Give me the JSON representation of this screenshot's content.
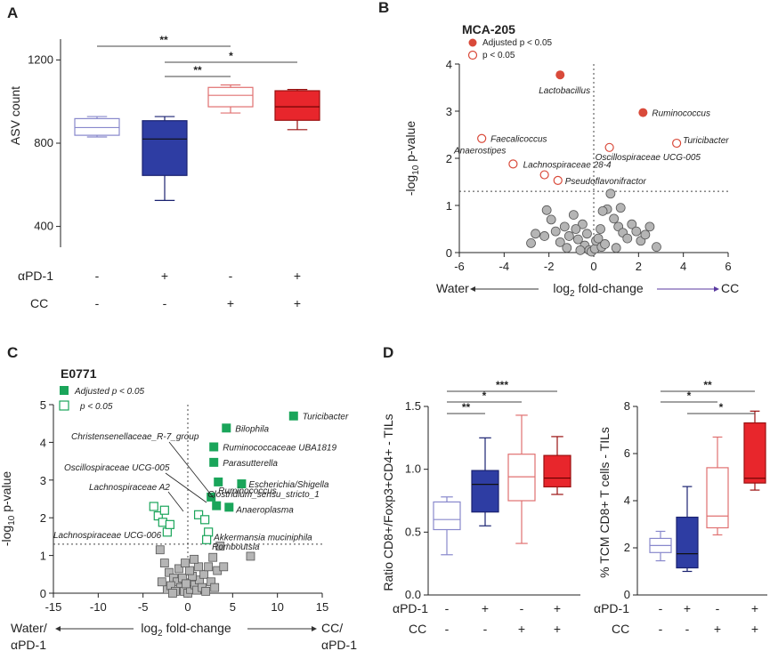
{
  "panel_letters": {
    "a": "A",
    "b": "B",
    "c": "C",
    "d": "D"
  },
  "colors": {
    "water": "#8888cc",
    "apd1": "#2e3da3",
    "cc": "#e07070",
    "cc_apd1": "#e8262c",
    "adj_red": "#d94a3a",
    "green": "#1aa55a",
    "gray": "#b5b5b5"
  },
  "conditions": {
    "apd1_label": "αPD-1",
    "cc_label": "CC",
    "apd1_signs": [
      "-",
      "+",
      "-",
      "+"
    ],
    "cc_signs": [
      "-",
      "-",
      "+",
      "+"
    ]
  },
  "chart_data": [
    {
      "id": "A",
      "type": "box",
      "ylabel": "ASV count",
      "ylim": [
        300,
        1300
      ],
      "yticks": [
        "400",
        "800",
        "1200"
      ],
      "ytick_values": [
        400,
        800,
        1200
      ],
      "groups": [
        {
          "name": "Water",
          "min": 830,
          "q1": 838,
          "median": 875,
          "q3": 918,
          "max": 928
        },
        {
          "name": "αPD-1",
          "min": 525,
          "q1": 645,
          "median": 820,
          "q3": 908,
          "max": 928
        },
        {
          "name": "CC",
          "min": 945,
          "q1": 975,
          "median": 1030,
          "q3": 1068,
          "max": 1080
        },
        {
          "name": "CC+αPD-1",
          "min": 865,
          "q1": 910,
          "median": 975,
          "q3": 1052,
          "max": 1058
        }
      ],
      "significance": [
        {
          "from": 0,
          "to": 2,
          "label": "**"
        },
        {
          "from": 1,
          "to": 3,
          "label": "*"
        },
        {
          "from": 1,
          "to": 2,
          "label": "**"
        }
      ]
    },
    {
      "id": "B",
      "type": "scatter",
      "title": "MCA-205",
      "xlabel_main": "log",
      "xlabel_sub": "2",
      "xlabel_rest": " fold-change",
      "ylabel_main": "-log",
      "ylabel_sub": "10",
      "ylabel_rest": " p-value",
      "left_label": "Water",
      "right_label": "CC",
      "xlim": [
        -6,
        6
      ],
      "ylim": [
        0,
        4
      ],
      "xticks": [
        "-6",
        "-4",
        "-2",
        "0",
        "2",
        "4",
        "6"
      ],
      "xtick_values": [
        -6,
        -4,
        -2,
        0,
        2,
        4,
        6
      ],
      "yticks": [
        "0",
        "1",
        "2",
        "3",
        "4"
      ],
      "ytick_values": [
        0,
        1,
        2,
        3,
        4
      ],
      "threshold_y": 1.3,
      "legend": [
        {
          "text": "Adjusted p < 0.05",
          "style": "filled"
        },
        {
          "text": "p < 0.05",
          "style": "open"
        }
      ],
      "points_adjusted": [
        {
          "x": -1.5,
          "y": 3.77,
          "label": "Lactobacillus"
        },
        {
          "x": 2.2,
          "y": 2.97,
          "label": "Ruminococcus"
        }
      ],
      "points_p05": [
        {
          "x": -5.0,
          "y": 2.42,
          "label": "Faecalicoccus"
        },
        {
          "x": -3.6,
          "y": 1.88,
          "label": "Anaerostipes"
        },
        {
          "x": -2.2,
          "y": 1.65,
          "label": "Lachnospiraceae 28-4"
        },
        {
          "x": -1.6,
          "y": 1.53,
          "label": "Pseudoflavonifractor"
        },
        {
          "x": 0.7,
          "y": 2.23,
          "label": "Oscillospiraceae UCG-005"
        },
        {
          "x": 3.7,
          "y": 2.32,
          "label": "Turicibacter"
        }
      ],
      "points_ns": [
        [
          -2.1,
          0.9
        ],
        [
          -2.2,
          0.35
        ],
        [
          -1.9,
          0.7
        ],
        [
          -1.7,
          0.45
        ],
        [
          -1.5,
          0.22
        ],
        [
          -1.3,
          0.55
        ],
        [
          -1.1,
          0.35
        ],
        [
          -0.9,
          0.8
        ],
        [
          -0.7,
          0.28
        ],
        [
          -0.5,
          0.6
        ],
        [
          -0.4,
          0.15
        ],
        [
          -0.3,
          0.4
        ],
        [
          -0.2,
          0.05
        ],
        [
          -0.1,
          0.02
        ],
        [
          0.05,
          0.08
        ],
        [
          0.1,
          0.25
        ],
        [
          0.2,
          0.3
        ],
        [
          0.35,
          0.12
        ],
        [
          0.5,
          0.18
        ],
        [
          0.6,
          0.92
        ],
        [
          0.75,
          1.25
        ],
        [
          0.4,
          0.88
        ],
        [
          0.9,
          0.72
        ],
        [
          1.1,
          0.55
        ],
        [
          1.3,
          0.42
        ],
        [
          1.5,
          0.3
        ],
        [
          1.7,
          0.6
        ],
        [
          1.9,
          0.45
        ],
        [
          2.1,
          0.25
        ],
        [
          2.3,
          0.38
        ],
        [
          2.5,
          0.55
        ],
        [
          -2.6,
          0.4
        ],
        [
          -2.8,
          0.2
        ],
        [
          -0.8,
          0.5
        ],
        [
          1.0,
          0.1
        ],
        [
          -0.6,
          0.05
        ],
        [
          0.3,
          0.5
        ],
        [
          1.2,
          0.95
        ],
        [
          -1.2,
          0.1
        ],
        [
          2.8,
          0.12
        ]
      ]
    },
    {
      "id": "C",
      "type": "scatter",
      "title": "E0771",
      "xlabel_main": "log",
      "xlabel_sub": "2",
      "xlabel_rest": " fold-change",
      "ylabel_main": "-log",
      "ylabel_sub": "10",
      "ylabel_rest": " p-value",
      "left_label_1": "Water/",
      "left_label_2": "αPD-1",
      "right_label_1": "CC/",
      "right_label_2": "αPD-1",
      "xlim": [
        -15,
        15
      ],
      "ylim": [
        0,
        5
      ],
      "xticks": [
        "-15",
        "-10",
        "-5",
        "0",
        "5",
        "10",
        "15"
      ],
      "xtick_values": [
        -15,
        -10,
        -5,
        0,
        5,
        10,
        15
      ],
      "yticks": [
        "0",
        "1",
        "2",
        "3",
        "4",
        "5"
      ],
      "ytick_values": [
        0,
        1,
        2,
        3,
        4,
        5
      ],
      "threshold_y": 1.3,
      "legend": [
        {
          "text": "Adjusted p < 0.05",
          "style": "filled"
        },
        {
          "text": "p < 0.05",
          "style": "open"
        }
      ],
      "points_adjusted": [
        {
          "x": 11.8,
          "y": 4.7,
          "label": "Turicibacter"
        },
        {
          "x": 4.3,
          "y": 4.38,
          "label": "Bilophila"
        },
        {
          "x": 2.9,
          "y": 3.88,
          "label": "Ruminococcaceae UBA1819"
        },
        {
          "x": 2.9,
          "y": 3.47,
          "label": "Parasutterella"
        },
        {
          "x": 3.4,
          "y": 2.95,
          "label": "Clostridium_sensu_stricto_1"
        },
        {
          "x": 6.0,
          "y": 2.9,
          "label": "Escherichia/Shigella"
        },
        {
          "x": 2.6,
          "y": 2.55,
          "label": "Ruminococcus"
        },
        {
          "x": 4.6,
          "y": 2.28,
          "label": "Anaeroplasma"
        },
        {
          "x": 3.2,
          "y": 2.32,
          "label": ""
        }
      ],
      "points_p05": [
        {
          "x": -3.8,
          "y": 2.3,
          "label": ""
        },
        {
          "x": -3.3,
          "y": 2.05,
          "label": ""
        },
        {
          "x": -2.8,
          "y": 1.88,
          "label": ""
        },
        {
          "x": -2.3,
          "y": 1.62,
          "label": ""
        },
        {
          "x": -2.0,
          "y": 1.82,
          "label": ""
        },
        {
          "x": -2.6,
          "y": 2.2,
          "label": ""
        },
        {
          "x": 1.2,
          "y": 2.08,
          "label": ""
        },
        {
          "x": 1.9,
          "y": 1.95,
          "label": ""
        },
        {
          "x": 2.3,
          "y": 1.62,
          "label": "Akkermansia muciniphila"
        },
        {
          "x": 2.1,
          "y": 1.42,
          "label": "Romboutsia"
        }
      ],
      "annotation_labels": [
        {
          "label": "Christensenellaceae_R-7_group"
        },
        {
          "label": "Oscillospiraceae UCG-005"
        },
        {
          "label": "Lachnospiraceae A2"
        },
        {
          "label": "Lachnospiraceae UCG-006"
        }
      ],
      "points_ns": [
        [
          -3.1,
          1.15
        ],
        [
          -2.6,
          0.8
        ],
        [
          -2.1,
          0.55
        ],
        [
          -1.6,
          0.4
        ],
        [
          -1.2,
          0.3
        ],
        [
          -0.8,
          0.15
        ],
        [
          -0.4,
          0.05
        ],
        [
          0.0,
          0.0
        ],
        [
          0.3,
          0.1
        ],
        [
          0.8,
          0.22
        ],
        [
          1.3,
          0.35
        ],
        [
          1.8,
          0.5
        ],
        [
          2.3,
          0.7
        ],
        [
          2.8,
          0.95
        ],
        [
          3.3,
          0.6
        ],
        [
          3.6,
          1.25
        ],
        [
          4.0,
          0.7
        ],
        [
          -2.3,
          0.1
        ],
        [
          -1.9,
          0.2
        ],
        [
          -1.4,
          0.05
        ],
        [
          -0.6,
          0.4
        ],
        [
          0.5,
          0.45
        ],
        [
          1.0,
          0.08
        ],
        [
          -0.2,
          0.25
        ],
        [
          1.6,
          0.15
        ],
        [
          2.6,
          0.3
        ],
        [
          7.0,
          0.98
        ],
        [
          -2.9,
          0.3
        ],
        [
          0.2,
          0.6
        ],
        [
          1.2,
          0.7
        ],
        [
          -1.0,
          0.65
        ],
        [
          -0.3,
          0.8
        ],
        [
          0.7,
          0.9
        ],
        [
          3.0,
          0.15
        ],
        [
          -1.7,
          0.0
        ],
        [
          2.0,
          0.05
        ]
      ]
    },
    {
      "id": "D1",
      "type": "box",
      "ylabel": "Ratio CD8+/Foxp3+CD4+ - TILs",
      "ylim": [
        0,
        1.5
      ],
      "yticks": [
        "0.0",
        "0.5",
        "1.0",
        "1.5"
      ],
      "ytick_values": [
        0,
        0.5,
        1.0,
        1.5
      ],
      "groups": [
        {
          "name": "Water",
          "min": 0.32,
          "q1": 0.52,
          "median": 0.6,
          "q3": 0.74,
          "max": 0.78
        },
        {
          "name": "αPD-1",
          "min": 0.55,
          "q1": 0.66,
          "median": 0.88,
          "q3": 0.99,
          "max": 1.25
        },
        {
          "name": "CC",
          "min": 0.41,
          "q1": 0.75,
          "median": 0.94,
          "q3": 1.12,
          "max": 1.43
        },
        {
          "name": "CC+αPD-1",
          "min": 0.8,
          "q1": 0.86,
          "median": 0.93,
          "q3": 1.11,
          "max": 1.26
        }
      ],
      "significance": [
        {
          "from": 0,
          "to": 3,
          "label": "***"
        },
        {
          "from": 0,
          "to": 2,
          "label": "*"
        },
        {
          "from": 0,
          "to": 1,
          "label": "**"
        }
      ]
    },
    {
      "id": "D2",
      "type": "box",
      "ylabel": "% TCM CD8+ T cells - TILs",
      "ylim": [
        0,
        8
      ],
      "yticks": [
        "0",
        "2",
        "4",
        "6",
        "8"
      ],
      "ytick_values": [
        0,
        2,
        4,
        6,
        8
      ],
      "groups": [
        {
          "name": "Water",
          "min": 1.45,
          "q1": 1.8,
          "median": 2.1,
          "q3": 2.4,
          "max": 2.7
        },
        {
          "name": "αPD-1",
          "min": 1.0,
          "q1": 1.15,
          "median": 1.75,
          "q3": 3.3,
          "max": 4.6
        },
        {
          "name": "CC",
          "min": 2.55,
          "q1": 2.85,
          "median": 3.35,
          "q3": 5.4,
          "max": 6.7
        },
        {
          "name": "CC+αPD-1",
          "min": 4.45,
          "q1": 4.75,
          "median": 4.95,
          "q3": 7.3,
          "max": 7.8
        }
      ],
      "significance": [
        {
          "from": 0,
          "to": 3,
          "label": "**"
        },
        {
          "from": 0,
          "to": 2,
          "label": "*"
        },
        {
          "from": 1,
          "to": 3,
          "label": "*"
        }
      ]
    }
  ]
}
